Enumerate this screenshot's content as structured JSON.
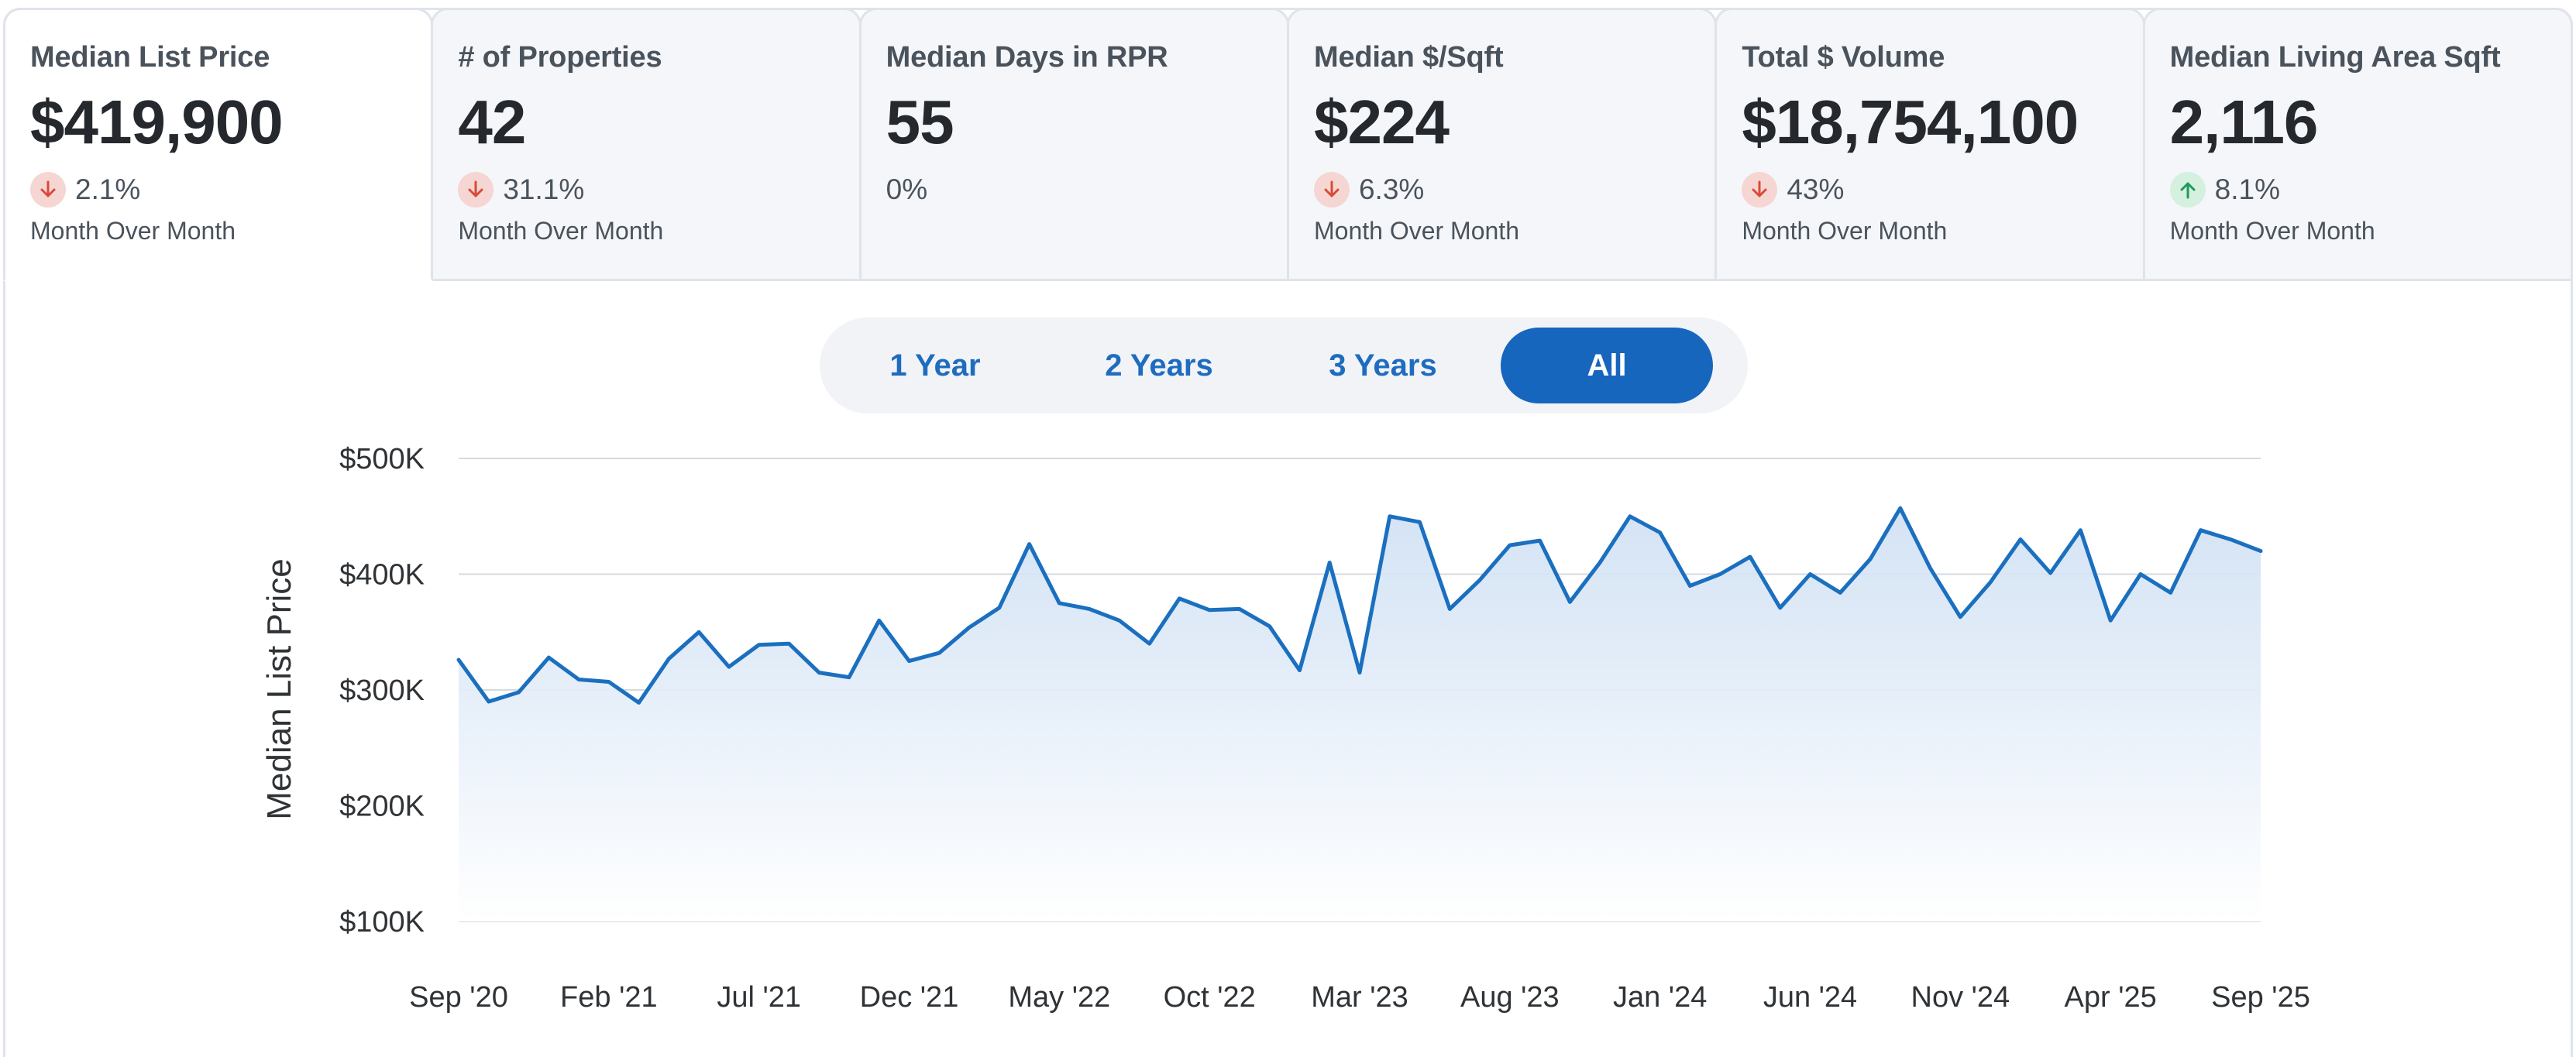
{
  "metrics": [
    {
      "title": "Median List Price",
      "value": "$419,900",
      "change": "2.1%",
      "direction": "down",
      "period": "Month Over Month",
      "active": true
    },
    {
      "title": "# of Properties",
      "value": "42",
      "change": "31.1%",
      "direction": "down",
      "period": "Month Over Month",
      "active": false
    },
    {
      "title": "Median Days in RPR",
      "value": "55",
      "change": "0%",
      "direction": "none",
      "period": "",
      "active": false
    },
    {
      "title": "Median $/Sqft",
      "value": "$224",
      "change": "6.3%",
      "direction": "down",
      "period": "Month Over Month",
      "active": false
    },
    {
      "title": "Total $ Volume",
      "value": "$18,754,100",
      "change": "43%",
      "direction": "down",
      "period": "Month Over Month",
      "active": false
    },
    {
      "title": "Median Living Area Sqft",
      "value": "2,116",
      "change": "8.1%",
      "direction": "up",
      "period": "Month Over Month",
      "active": false
    }
  ],
  "range_toggle": {
    "options": [
      "1 Year",
      "2 Years",
      "3 Years",
      "All"
    ],
    "selected": "All"
  },
  "colors": {
    "line": "#1b6fbf",
    "area_top": "#cfe0f3",
    "grid": "#d6d9de",
    "down_arrow": "#d94a38",
    "up_arrow": "#1f9a5a",
    "toggle_active": "#1766bd"
  },
  "chart_data": {
    "type": "area",
    "ylabel": "Median List Price",
    "xlabel": "",
    "title": "",
    "ylim": [
      100000,
      500000
    ],
    "y_ticks": [
      100000,
      200000,
      300000,
      400000,
      500000
    ],
    "y_tick_labels": [
      "$100K",
      "$200K",
      "$300K",
      "$400K",
      "$500K"
    ],
    "x_tick_labels": [
      "Sep '20",
      "Feb '21",
      "Jul '21",
      "Dec '21",
      "May '22",
      "Oct '22",
      "Mar '23",
      "Aug '23",
      "Jan '24",
      "Jun '24",
      "Nov '24",
      "Apr '25",
      "Sep '25"
    ],
    "grid": true,
    "x_start": "2020-09",
    "x_end": "2025-09",
    "series": [
      {
        "name": "",
        "values": [
          326000,
          290000,
          298000,
          328000,
          309000,
          307000,
          289000,
          327000,
          350000,
          320000,
          339000,
          340000,
          315000,
          311000,
          360000,
          325000,
          332000,
          354000,
          371000,
          426000,
          375000,
          370000,
          360000,
          340000,
          379000,
          369000,
          370000,
          355000,
          317000,
          410000,
          315000,
          450000,
          445000,
          370000,
          395000,
          425000,
          429000,
          376000,
          410000,
          450000,
          436000,
          390000,
          400000,
          415000,
          371000,
          400000,
          384000,
          413000,
          457000,
          405000,
          363000,
          393000,
          430000,
          401000,
          438000,
          360000,
          400000,
          384000,
          438000,
          430000,
          420000
        ]
      }
    ]
  }
}
